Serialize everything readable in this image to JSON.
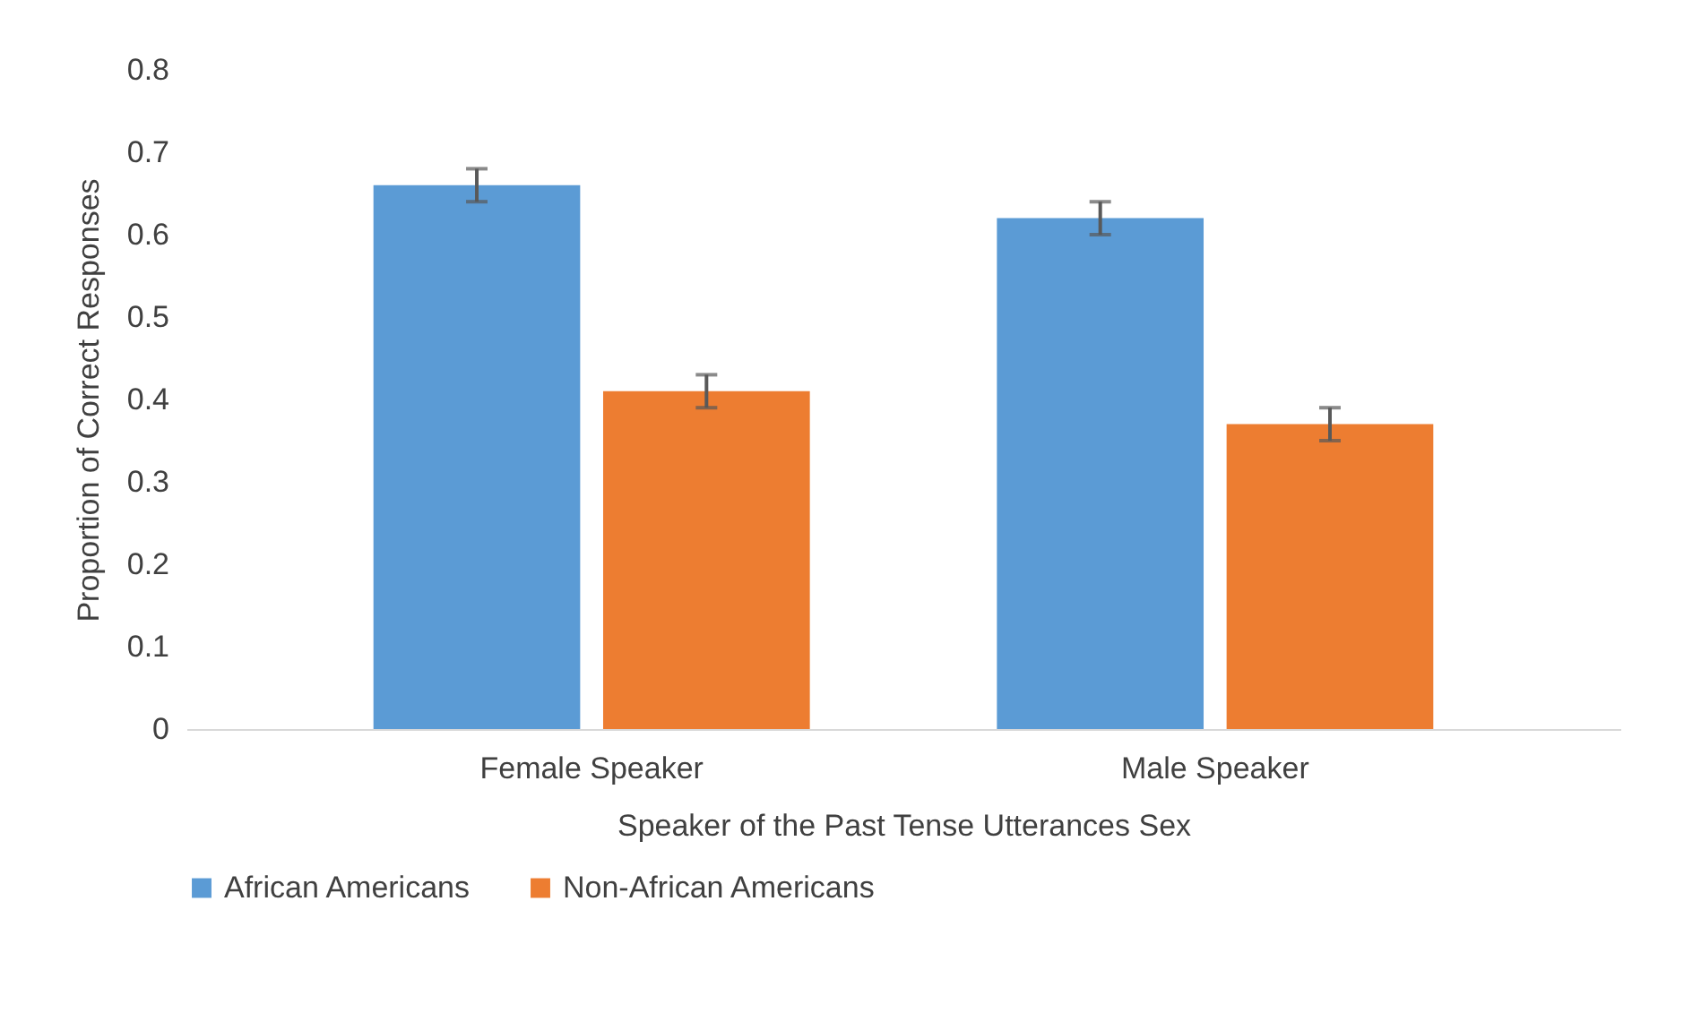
{
  "chart_data": {
    "type": "bar",
    "xlabel": "Speaker of the Past Tense Utterances Sex",
    "ylabel": "Proportion of Correct Responses",
    "categories": [
      "Female Speaker",
      "Male Speaker"
    ],
    "series": [
      {
        "name": "African Americans",
        "color": "#5b9bd5",
        "values": [
          0.66,
          0.62
        ],
        "errors": [
          0.02,
          0.02
        ]
      },
      {
        "name": "Non-African Americans",
        "color": "#ed7d31",
        "values": [
          0.41,
          0.37
        ],
        "errors": [
          0.02,
          0.02
        ]
      }
    ],
    "ylim": [
      0,
      0.8
    ],
    "yticks": [
      0,
      0.1,
      0.2,
      0.3,
      0.4,
      0.5,
      0.6,
      0.7,
      0.8
    ],
    "grid": false,
    "legend": "bottom"
  }
}
